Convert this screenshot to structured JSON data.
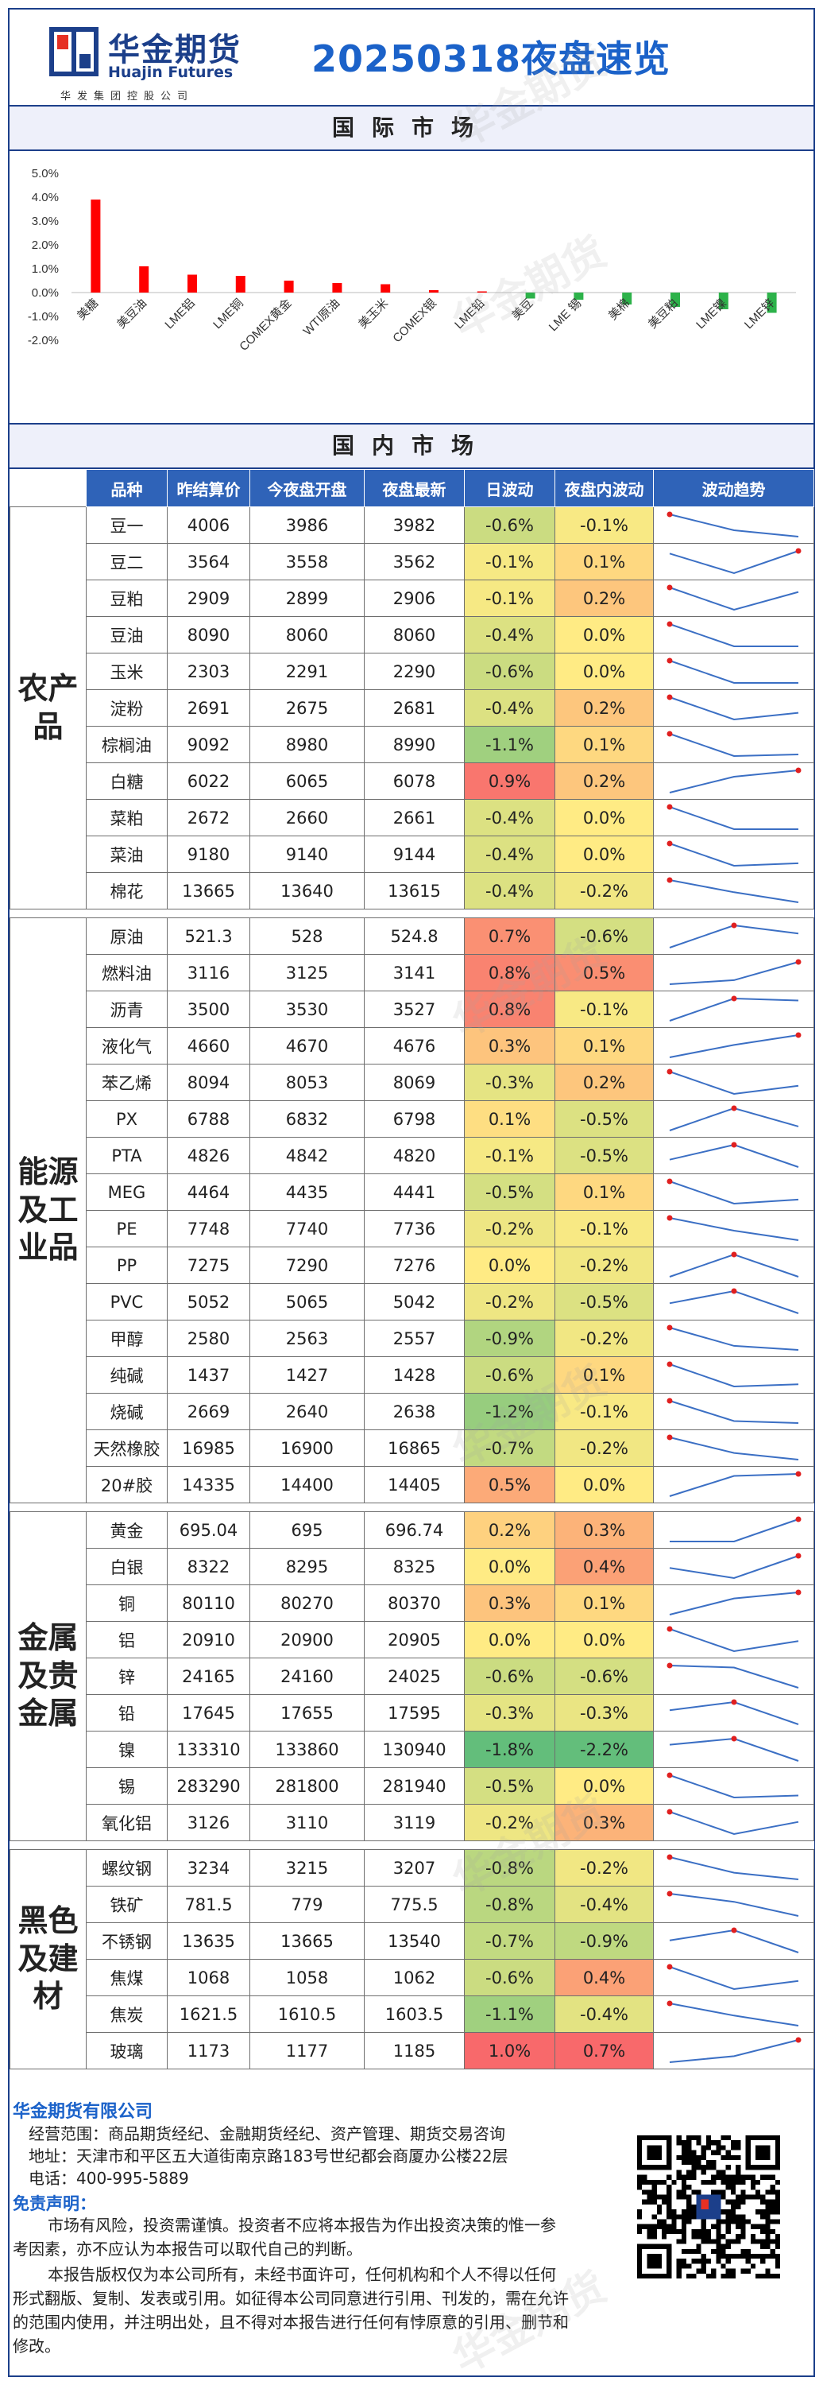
{
  "header": {
    "logo_cn": "华金期货",
    "logo_en": "Huajin Futures",
    "logo_sub": "华发集团控股公司",
    "title": "20250318夜盘速览"
  },
  "sections": {
    "intl": "国际市场",
    "domestic": "国内市场"
  },
  "chart_data": {
    "type": "bar",
    "categories": [
      "美糖",
      "美豆油",
      "LME铝",
      "LME铜",
      "COMEX黄金",
      "WTI原油",
      "美玉米",
      "COMEX银",
      "LME铅",
      "美豆",
      "LME 锡",
      "美棉",
      "美豆粕",
      "LME镍",
      "LME锌"
    ],
    "values": [
      3.9,
      1.1,
      0.75,
      0.7,
      0.5,
      0.4,
      0.35,
      0.1,
      0.05,
      -0.25,
      -0.3,
      -0.5,
      -0.6,
      -0.7,
      -0.85
    ],
    "ylim": [
      -2.0,
      5.0
    ],
    "yticks": [
      "5.0%",
      "4.0%",
      "3.0%",
      "2.0%",
      "1.0%",
      "0.0%",
      "-1.0%",
      "-2.0%"
    ],
    "colors": {
      "up": "#ff0000",
      "down": "#2db24a"
    }
  },
  "table": {
    "headers": [
      "品种",
      "昨结算价",
      "今夜盘开盘",
      "夜盘最新",
      "日波动",
      "夜盘内波动",
      "波动趋势"
    ],
    "groups": [
      {
        "name": "农产品",
        "rows": [
          {
            "name": "豆一",
            "prev": "4006",
            "open": "3986",
            "last": "3982",
            "day": "-0.6%",
            "night": "-0.1%",
            "trend": [
              0.55,
              0.5,
              0.48
            ]
          },
          {
            "name": "豆二",
            "prev": "3564",
            "open": "3558",
            "last": "3562",
            "day": "-0.1%",
            "night": "0.1%",
            "trend": [
              0.5,
              0.35,
              0.52
            ]
          },
          {
            "name": "豆粕",
            "prev": "2909",
            "open": "2899",
            "last": "2906",
            "day": "-0.1%",
            "night": "0.2%",
            "trend": [
              0.55,
              0.3,
              0.5
            ]
          },
          {
            "name": "豆油",
            "prev": "8090",
            "open": "8060",
            "last": "8060",
            "day": "-0.4%",
            "night": "0.0%",
            "trend": [
              0.55,
              0.48,
              0.48
            ]
          },
          {
            "name": "玉米",
            "prev": "2303",
            "open": "2291",
            "last": "2290",
            "day": "-0.6%",
            "night": "0.0%",
            "trend": [
              0.55,
              0.48,
              0.48
            ]
          },
          {
            "name": "淀粉",
            "prev": "2691",
            "open": "2675",
            "last": "2681",
            "day": "-0.4%",
            "night": "0.2%",
            "trend": [
              0.55,
              0.45,
              0.48
            ]
          },
          {
            "name": "棕榈油",
            "prev": "9092",
            "open": "8980",
            "last": "8990",
            "day": "-1.1%",
            "night": "0.1%",
            "trend": [
              0.6,
              0.46,
              0.47
            ]
          },
          {
            "name": "白糖",
            "prev": "6022",
            "open": "6065",
            "last": "6078",
            "day": "0.9%",
            "night": "0.2%",
            "trend": [
              0.42,
              0.52,
              0.56
            ]
          },
          {
            "name": "菜粕",
            "prev": "2672",
            "open": "2660",
            "last": "2661",
            "day": "-0.4%",
            "night": "0.0%",
            "trend": [
              0.55,
              0.47,
              0.47
            ]
          },
          {
            "name": "菜油",
            "prev": "9180",
            "open": "9140",
            "last": "9144",
            "day": "-0.4%",
            "night": "0.0%",
            "trend": [
              0.56,
              0.47,
              0.48
            ]
          },
          {
            "name": "棉花",
            "prev": "13665",
            "open": "13640",
            "last": "13615",
            "day": "-0.4%",
            "night": "-0.2%",
            "trend": [
              0.56,
              0.5,
              0.45
            ]
          }
        ]
      },
      {
        "name": "能源及工业品",
        "rows": [
          {
            "name": "原油",
            "prev": "521.3",
            "open": "528",
            "last": "524.8",
            "day": "0.7%",
            "night": "-0.6%",
            "trend": [
              0.45,
              0.56,
              0.52
            ]
          },
          {
            "name": "燃料油",
            "prev": "3116",
            "open": "3125",
            "last": "3141",
            "day": "0.8%",
            "night": "0.5%",
            "trend": [
              0.45,
              0.47,
              0.56
            ]
          },
          {
            "name": "沥青",
            "prev": "3500",
            "open": "3530",
            "last": "3527",
            "day": "0.8%",
            "night": "-0.1%",
            "trend": [
              0.45,
              0.56,
              0.55
            ]
          },
          {
            "name": "液化气",
            "prev": "4660",
            "open": "4670",
            "last": "4676",
            "day": "0.3%",
            "night": "0.1%",
            "trend": [
              0.45,
              0.5,
              0.54
            ]
          },
          {
            "name": "苯乙烯",
            "prev": "8094",
            "open": "8053",
            "last": "8069",
            "day": "-0.3%",
            "night": "0.2%",
            "trend": [
              0.56,
              0.45,
              0.49
            ]
          },
          {
            "name": "PX",
            "prev": "6788",
            "open": "6832",
            "last": "6798",
            "day": "0.1%",
            "night": "-0.5%",
            "trend": [
              0.45,
              0.56,
              0.47
            ]
          },
          {
            "name": "PTA",
            "prev": "4826",
            "open": "4842",
            "last": "4820",
            "day": "-0.1%",
            "night": "-0.5%",
            "trend": [
              0.5,
              0.56,
              0.47
            ]
          },
          {
            "name": "MEG",
            "prev": "4464",
            "open": "4435",
            "last": "4441",
            "day": "-0.5%",
            "night": "0.1%",
            "trend": [
              0.56,
              0.45,
              0.47
            ]
          },
          {
            "name": "PE",
            "prev": "7748",
            "open": "7740",
            "last": "7736",
            "day": "-0.2%",
            "night": "-0.1%",
            "trend": [
              0.56,
              0.52,
              0.49
            ]
          },
          {
            "name": "PP",
            "prev": "7275",
            "open": "7290",
            "last": "7276",
            "day": "0.0%",
            "night": "-0.2%",
            "trend": [
              0.46,
              0.56,
              0.46
            ]
          },
          {
            "name": "PVC",
            "prev": "5052",
            "open": "5065",
            "last": "5042",
            "day": "-0.2%",
            "night": "-0.5%",
            "trend": [
              0.5,
              0.56,
              0.45
            ]
          },
          {
            "name": "甲醇",
            "prev": "2580",
            "open": "2563",
            "last": "2557",
            "day": "-0.9%",
            "night": "-0.2%",
            "trend": [
              0.56,
              0.47,
              0.45
            ]
          },
          {
            "name": "纯碱",
            "prev": "1437",
            "open": "1427",
            "last": "1428",
            "day": "-0.6%",
            "night": "0.1%",
            "trend": [
              0.56,
              0.46,
              0.47
            ]
          },
          {
            "name": "烧碱",
            "prev": "2669",
            "open": "2640",
            "last": "2638",
            "day": "-1.2%",
            "night": "-0.1%",
            "trend": [
              0.56,
              0.46,
              0.45
            ]
          },
          {
            "name": "天然橡胶",
            "prev": "16985",
            "open": "16900",
            "last": "16865",
            "day": "-0.7%",
            "night": "-0.2%",
            "trend": [
              0.56,
              0.49,
              0.46
            ]
          },
          {
            "name": "20#胶",
            "prev": "14335",
            "open": "14400",
            "last": "14405",
            "day": "0.5%",
            "night": "0.0%",
            "trend": [
              0.45,
              0.55,
              0.56
            ]
          }
        ]
      },
      {
        "name": "金属及贵金属",
        "rows": [
          {
            "name": "黄金",
            "prev": "695.04",
            "open": "695",
            "last": "696.74",
            "day": "0.2%",
            "night": "0.3%",
            "trend": [
              0.48,
              0.48,
              0.56
            ]
          },
          {
            "name": "白银",
            "prev": "8322",
            "open": "8295",
            "last": "8325",
            "day": "0.0%",
            "night": "0.4%",
            "trend": [
              0.5,
              0.45,
              0.56
            ]
          },
          {
            "name": "铜",
            "prev": "80110",
            "open": "80270",
            "last": "80370",
            "day": "0.3%",
            "night": "0.1%",
            "trend": [
              0.45,
              0.53,
              0.56
            ]
          },
          {
            "name": "铝",
            "prev": "20910",
            "open": "20900",
            "last": "20905",
            "day": "0.0%",
            "night": "0.0%",
            "trend": [
              0.56,
              0.45,
              0.5
            ]
          },
          {
            "name": "锌",
            "prev": "24165",
            "open": "24160",
            "last": "24025",
            "day": "-0.6%",
            "night": "-0.6%",
            "trend": [
              0.56,
              0.55,
              0.45
            ]
          },
          {
            "name": "铅",
            "prev": "17645",
            "open": "17655",
            "last": "17595",
            "day": "-0.3%",
            "night": "-0.3%",
            "trend": [
              0.52,
              0.56,
              0.45
            ]
          },
          {
            "name": "镍",
            "prev": "133310",
            "open": "133860",
            "last": "130940",
            "day": "-1.8%",
            "night": "-2.2%",
            "trend": [
              0.53,
              0.56,
              0.45
            ]
          },
          {
            "name": "锡",
            "prev": "283290",
            "open": "281800",
            "last": "281940",
            "day": "-0.5%",
            "night": "0.0%",
            "trend": [
              0.56,
              0.45,
              0.46
            ]
          },
          {
            "name": "氧化铝",
            "prev": "3126",
            "open": "3110",
            "last": "3119",
            "day": "-0.2%",
            "night": "0.3%",
            "trend": [
              0.56,
              0.45,
              0.51
            ]
          }
        ]
      },
      {
        "name": "黑色及建材",
        "rows": [
          {
            "name": "螺纹钢",
            "prev": "3234",
            "open": "3215",
            "last": "3207",
            "day": "-0.8%",
            "night": "-0.2%",
            "trend": [
              0.56,
              0.49,
              0.46
            ]
          },
          {
            "name": "铁矿",
            "prev": "781.5",
            "open": "779",
            "last": "775.5",
            "day": "-0.8%",
            "night": "-0.4%",
            "trend": [
              0.56,
              0.52,
              0.45
            ]
          },
          {
            "name": "不锈钢",
            "prev": "13635",
            "open": "13665",
            "last": "13540",
            "day": "-0.7%",
            "night": "-0.9%",
            "trend": [
              0.51,
              0.56,
              0.45
            ]
          },
          {
            "name": "焦煤",
            "prev": "1068",
            "open": "1058",
            "last": "1062",
            "day": "-0.6%",
            "night": "0.4%",
            "trend": [
              0.56,
              0.45,
              0.49
            ]
          },
          {
            "name": "焦炭",
            "prev": "1621.5",
            "open": "1610.5",
            "last": "1603.5",
            "day": "-1.1%",
            "night": "-0.4%",
            "trend": [
              0.56,
              0.5,
              0.45
            ]
          },
          {
            "name": "玻璃",
            "prev": "1173",
            "open": "1177",
            "last": "1185",
            "day": "1.0%",
            "night": "0.7%",
            "trend": [
              0.45,
              0.48,
              0.56
            ]
          }
        ]
      }
    ]
  },
  "footer": {
    "company": "华金期货有限公司",
    "scope": "经营范围：商品期货经纪、金融期货经纪、资产管理、期货交易咨询",
    "address": "地址：天津市和平区五大道街南京路183号世纪都会商厦办公楼22层",
    "phone": "电话：400-995-5889",
    "disclaimer_title": "免责声明：",
    "para1": "市场有风险，投资需谨慎。投资者不应将本报告为作出投资决策的惟一参考因素，亦不应认为本报告可以取代自己的判断。",
    "para2": "本报告版权仅为本公司所有，未经书面许可，任何机构和个人不得以任何形式翻版、复制、发表或引用。如征得本公司同意进行引用、刊发的，需在允许的范围内使用，并注明出处，且不得对本报告进行任何有悖原意的引用、删节和修改。"
  }
}
